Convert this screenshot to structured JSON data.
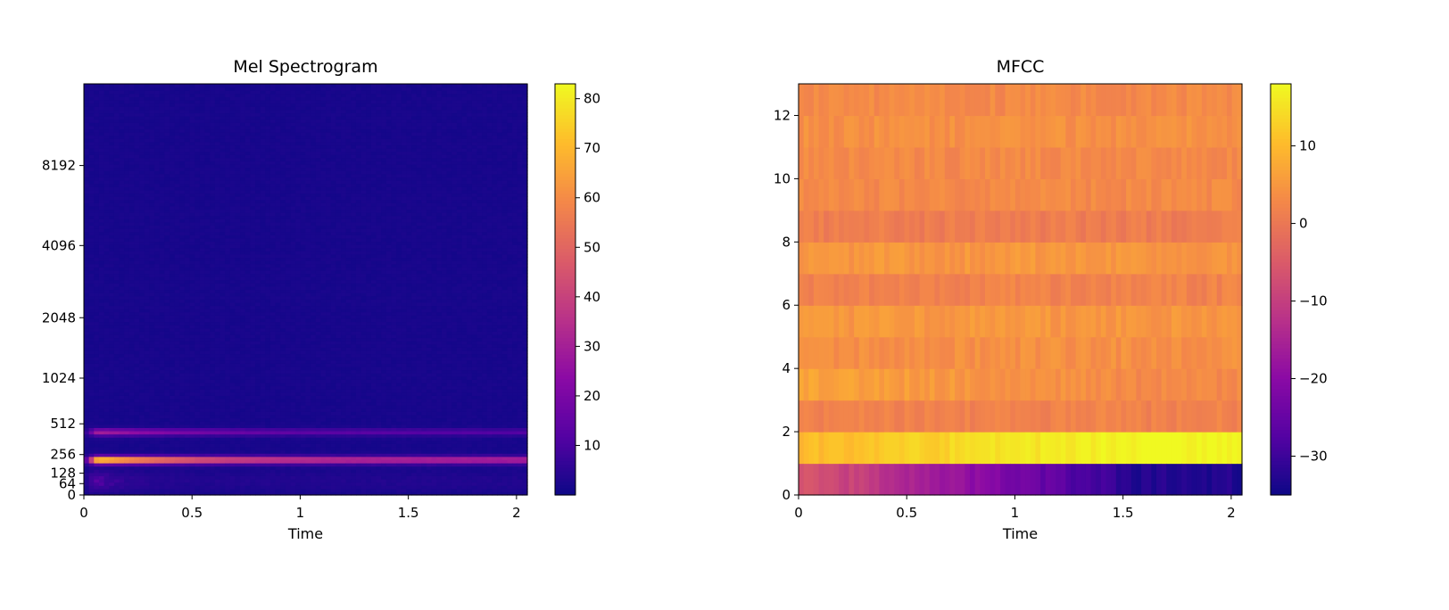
{
  "chart_data": [
    {
      "type": "heatmap",
      "title": "Mel Spectrogram",
      "xlabel": "Time",
      "ylabel": "",
      "xlim": [
        0,
        2.05
      ],
      "x_ticks": [
        0,
        0.5,
        1,
        1.5,
        2
      ],
      "x_tick_labels": [
        "0",
        "0.5",
        "1",
        "1.5",
        "2"
      ],
      "y_scale": "mel",
      "y_ticks": [
        0,
        64,
        128,
        256,
        512,
        1024,
        2048,
        4096,
        8192
      ],
      "y_tick_labels": [
        "0",
        "64",
        "128",
        "256",
        "512",
        "1024",
        "2048",
        "4096",
        "8192"
      ],
      "colormap": "plasma",
      "colorbar": {
        "range": [
          0,
          83
        ],
        "ticks": [
          10,
          20,
          30,
          40,
          50,
          60,
          70,
          80
        ],
        "tick_labels": [
          "10",
          "20",
          "30",
          "40",
          "50",
          "60",
          "70",
          "80"
        ]
      },
      "features": [
        {
          "description_freq_hz": 220,
          "bandwidth_hz": 25,
          "peak": 80,
          "tail": 32
        },
        {
          "description_freq_hz": 440,
          "bandwidth_hz": 30,
          "peak": 28,
          "tail": 10
        },
        {
          "description_freq_hz": 80,
          "bandwidth_hz": 60,
          "peak": 16,
          "tail": 2
        }
      ]
    },
    {
      "type": "heatmap",
      "title": "MFCC",
      "xlabel": "Time",
      "ylabel": "",
      "xlim": [
        0,
        2.05
      ],
      "ylim": [
        0,
        13
      ],
      "x_ticks": [
        0,
        0.5,
        1,
        1.5,
        2
      ],
      "x_tick_labels": [
        "0",
        "0.5",
        "1",
        "1.5",
        "2"
      ],
      "y_ticks": [
        0,
        2,
        4,
        6,
        8,
        10,
        12
      ],
      "y_tick_labels": [
        "0",
        "2",
        "4",
        "6",
        "8",
        "10",
        "12"
      ],
      "colormap": "plasma",
      "colorbar": {
        "range": [
          -35,
          18
        ],
        "ticks": [
          10,
          0,
          -10,
          -20,
          -30
        ],
        "tick_labels": [
          "10",
          "0",
          "−10",
          "−20",
          "−30"
        ]
      },
      "coefficient_means": [
        -25,
        15,
        2,
        6,
        4,
        5,
        2,
        5,
        1,
        3,
        3,
        4,
        3
      ],
      "coefficient_start_values": [
        -5,
        10,
        2,
        7,
        4,
        5,
        2,
        5,
        1,
        3,
        3,
        4,
        3
      ],
      "coefficient_end_values": [
        -33,
        18,
        2,
        3,
        4,
        5,
        2,
        5,
        1,
        3,
        3,
        4,
        3
      ]
    }
  ]
}
